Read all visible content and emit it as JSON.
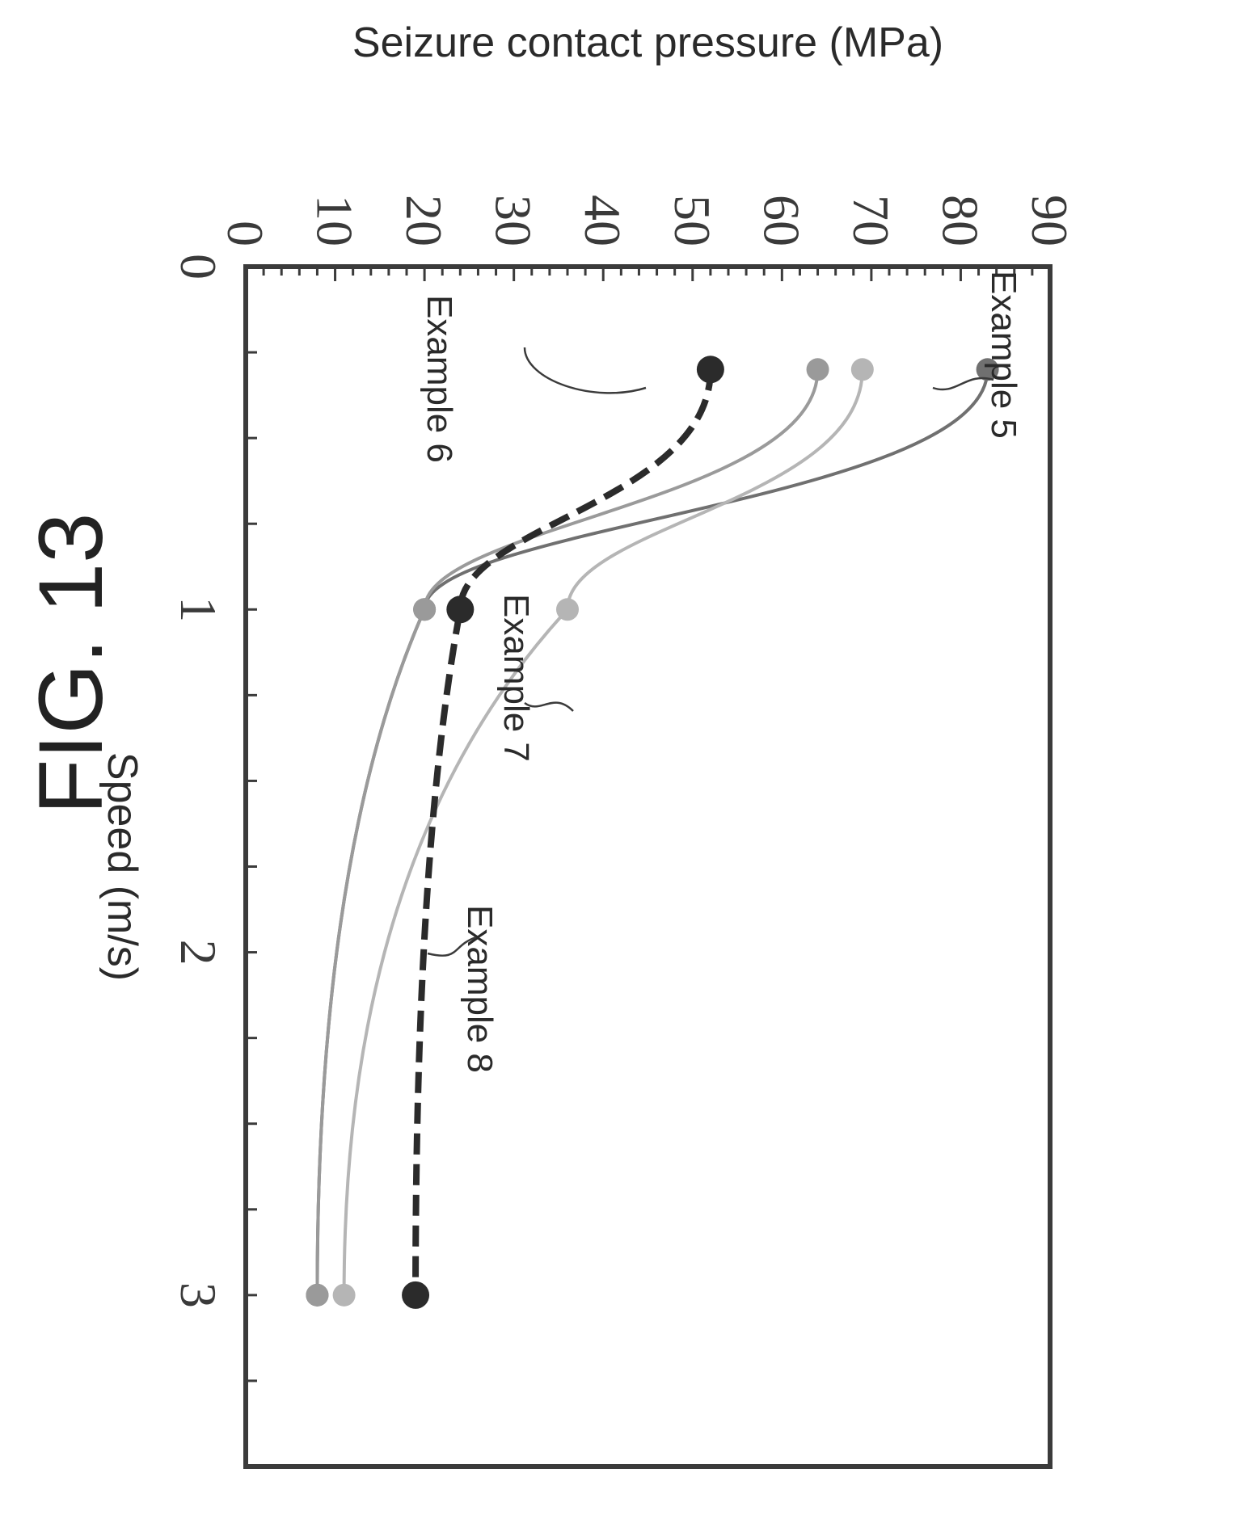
{
  "figure_title": "FIG. 13",
  "chart_data": {
    "type": "line",
    "title": "",
    "xlabel": "Speed (m/s)",
    "ylabel": "Seizure contact pressure (MPa)",
    "xlim": [
      0,
      3.5
    ],
    "ylim": [
      0,
      90
    ],
    "x_ticks": [
      0,
      1,
      2,
      3
    ],
    "y_ticks": [
      0,
      10,
      20,
      30,
      40,
      50,
      60,
      70,
      80,
      90
    ],
    "grid": false,
    "legend": "none",
    "series": [
      {
        "name": "Example 5",
        "x": [
          0.3,
          1,
          3
        ],
        "y": [
          83,
          20,
          8
        ],
        "color": "#707070",
        "dashed": false
      },
      {
        "name": "Example 6",
        "x": [
          0.3,
          1,
          3
        ],
        "y": [
          64,
          20,
          8
        ],
        "color": "#9a9a9a",
        "dashed": false
      },
      {
        "name": "Example 7",
        "x": [
          0.3,
          1,
          3
        ],
        "y": [
          69,
          36,
          11
        ],
        "color": "#b5b5b5",
        "dashed": false
      },
      {
        "name": "Example 8",
        "x": [
          0.3,
          1,
          3
        ],
        "y": [
          52,
          24,
          19
        ],
        "color": "#2b2b2b",
        "dashed": true
      }
    ]
  }
}
